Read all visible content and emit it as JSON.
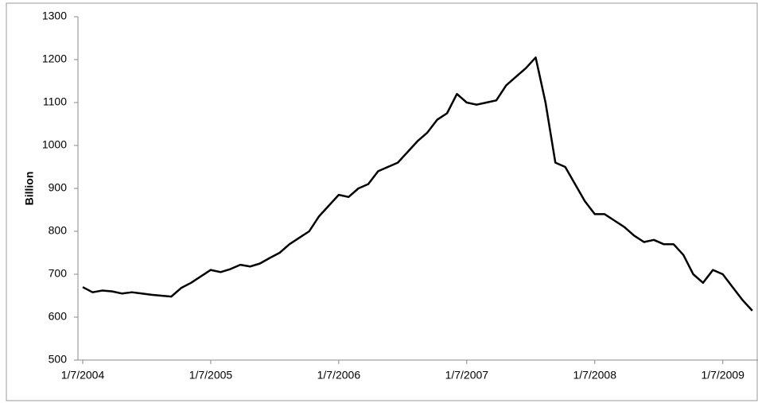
{
  "chart_data": {
    "type": "line",
    "y_label": "Billion",
    "categories": [
      "1/7/2004",
      null,
      null,
      null,
      null,
      null,
      null,
      null,
      null,
      null,
      null,
      null,
      null,
      "1/7/2005",
      null,
      null,
      null,
      null,
      null,
      null,
      null,
      null,
      null,
      null,
      null,
      null,
      "1/7/2006",
      null,
      null,
      null,
      null,
      null,
      null,
      null,
      null,
      null,
      null,
      null,
      null,
      "1/7/2007",
      null,
      null,
      null,
      null,
      null,
      null,
      null,
      null,
      null,
      null,
      null,
      null,
      "1/7/2008",
      null,
      null,
      null,
      null,
      null,
      null,
      null,
      null,
      null,
      null,
      null,
      null,
      "1/7/2009",
      null,
      null,
      null
    ],
    "series": [
      {
        "color": "#000000",
        "values": [
          670,
          658,
          662,
          660,
          655,
          658,
          655,
          652,
          650,
          648,
          668,
          680,
          695,
          710,
          705,
          712,
          722,
          718,
          725,
          738,
          750,
          770,
          785,
          800,
          835,
          860,
          885,
          880,
          900,
          910,
          940,
          950,
          960,
          985,
          1010,
          1030,
          1060,
          1075,
          1120,
          1100,
          1095,
          1100,
          1105,
          1140,
          1160,
          1180,
          1205,
          1100,
          960,
          950,
          910,
          870,
          840,
          840,
          825,
          810,
          790,
          775,
          780,
          770,
          770,
          745,
          700,
          680,
          710,
          700,
          670,
          640,
          615
        ]
      }
    ],
    "ylim": [
      500,
      1300
    ],
    "yticks": [
      500,
      600,
      700,
      800,
      900,
      1000,
      1100,
      1200,
      1300
    ]
  }
}
